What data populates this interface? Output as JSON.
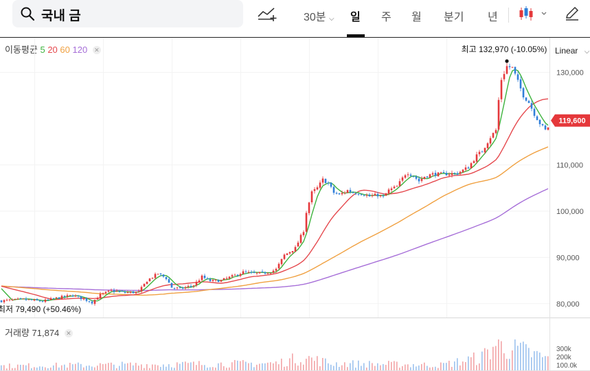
{
  "search": {
    "query": "국내 금"
  },
  "toolbar": {
    "interval": "30분",
    "tabs": [
      "일",
      "주",
      "월",
      "분기",
      "년"
    ],
    "active_tab": "일"
  },
  "scale_label": "Linear",
  "ma_legend": {
    "title": "이동평균",
    "periods": [
      "5",
      "20",
      "60",
      "120"
    ]
  },
  "volume_legend": {
    "title": "거래량",
    "value": "71,874"
  },
  "annotations": {
    "high": "최고 132,970 (-10.05%)",
    "low": "최저 79,490 (+50.46%)"
  },
  "current_price": "119,600",
  "colors": {
    "up": "#e5383b",
    "down": "#2f7fd9",
    "ma5": "#3db33d",
    "ma20": "#e5484d",
    "ma60": "#f0a040",
    "ma120": "#a66ed8"
  },
  "chart_data": {
    "type": "candlestick",
    "y_axis_ticks": [
      "130,000",
      "110,000",
      "100,000",
      "90,000",
      "80,000"
    ],
    "ylim": [
      77000,
      137500
    ],
    "volume_ticks": [
      "300k",
      "200k",
      "100.0k"
    ],
    "moving_average_periods": [
      5,
      20,
      60,
      120
    ],
    "price_path": [
      [
        0,
        80600
      ],
      [
        8,
        80900
      ],
      [
        15,
        80500
      ],
      [
        20,
        81200
      ],
      [
        26,
        81800
      ],
      [
        30,
        81000
      ],
      [
        33,
        80300
      ],
      [
        36,
        81900
      ],
      [
        40,
        82800
      ],
      [
        45,
        82400
      ],
      [
        50,
        82500
      ],
      [
        53,
        85000
      ],
      [
        57,
        86500
      ],
      [
        60,
        85500
      ],
      [
        62,
        83500
      ],
      [
        65,
        83200
      ],
      [
        70,
        84000
      ],
      [
        73,
        85800
      ],
      [
        76,
        84900
      ],
      [
        80,
        85000
      ],
      [
        85,
        86100
      ],
      [
        88,
        86800
      ],
      [
        92,
        86500
      ],
      [
        95,
        86600
      ],
      [
        98,
        86900
      ],
      [
        100,
        87400
      ],
      [
        103,
        90500
      ],
      [
        107,
        92000
      ],
      [
        110,
        95800
      ],
      [
        111,
        99800
      ],
      [
        113,
        104000
      ],
      [
        115,
        105000
      ],
      [
        117,
        106800
      ],
      [
        119,
        106000
      ],
      [
        121,
        104000
      ],
      [
        123,
        103500
      ],
      [
        126,
        104500
      ],
      [
        128,
        104000
      ],
      [
        131,
        103800
      ],
      [
        134,
        103200
      ],
      [
        137,
        103500
      ],
      [
        139,
        103000
      ],
      [
        141,
        104500
      ],
      [
        144,
        105300
      ],
      [
        147,
        108000
      ],
      [
        148,
        108300
      ],
      [
        150,
        107600
      ],
      [
        152,
        106500
      ],
      [
        154,
        107500
      ],
      [
        157,
        108000
      ],
      [
        161,
        108000
      ],
      [
        166,
        108200
      ],
      [
        170,
        109500
      ],
      [
        173,
        112000
      ],
      [
        175,
        113000
      ],
      [
        178,
        116000
      ],
      [
        180,
        117500
      ],
      [
        181,
        124000
      ],
      [
        182,
        128500
      ],
      [
        184,
        131300
      ],
      [
        186,
        131000
      ],
      [
        188,
        128000
      ],
      [
        190,
        125000
      ],
      [
        192,
        123500
      ],
      [
        194,
        121000
      ],
      [
        196,
        119000
      ],
      [
        198,
        117500
      ],
      [
        199,
        118200
      ],
      [
        200,
        119000
      ]
    ],
    "volume_profile": [
      [
        0,
        0.05
      ],
      [
        100,
        0.08
      ],
      [
        110,
        0.15
      ],
      [
        120,
        0.08
      ],
      [
        160,
        0.06
      ],
      [
        175,
        0.15
      ],
      [
        180,
        0.3
      ],
      [
        190,
        0.22
      ],
      [
        200,
        0.12
      ]
    ]
  }
}
